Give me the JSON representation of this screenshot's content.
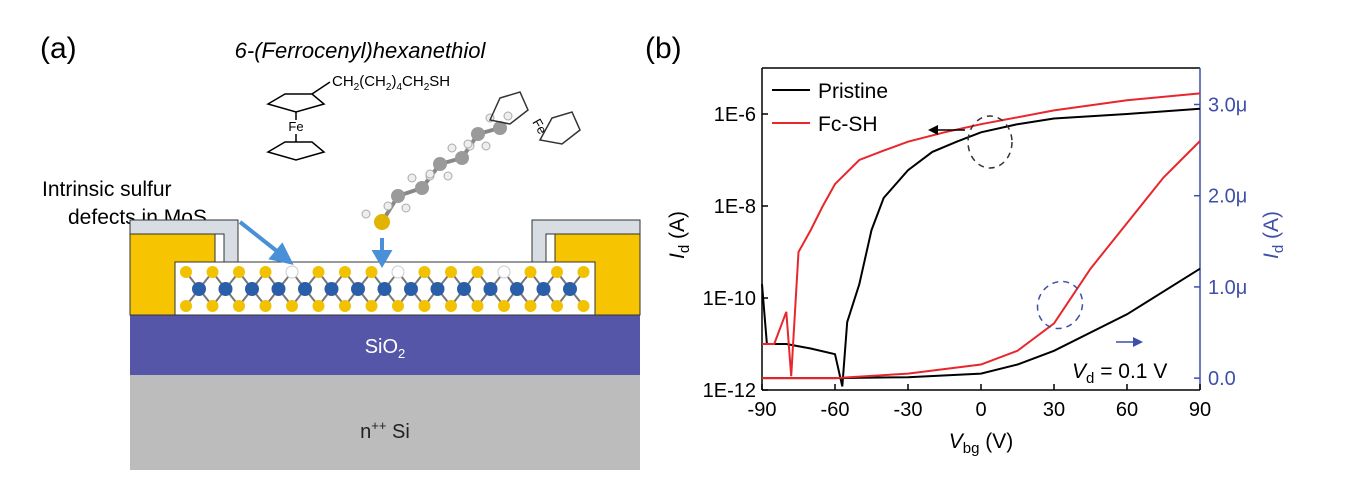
{
  "panel_a": {
    "label": "(a)",
    "molecule_name": "6-(Ferrocenyl)hexanethiol",
    "formula": [
      "CH",
      "2",
      "(CH",
      "2",
      ")",
      "4",
      "CH",
      "2",
      "SH"
    ],
    "fe_label": "Fe",
    "fe_label_molecule": "Fe",
    "defect_label": [
      "Intrinsic sulfur",
      "defects in MoS",
      "2"
    ],
    "oxide_label": [
      "SiO",
      "2"
    ],
    "substrate_label": [
      "n",
      "++",
      " Si"
    ]
  },
  "chart_data": {
    "type": "line",
    "label": "(b)",
    "xlabel": [
      "V",
      "bg",
      " (V)"
    ],
    "ylabel": [
      "I",
      "d",
      " (A)"
    ],
    "y2label": [
      "I",
      "d",
      " (A)"
    ],
    "annotation": [
      "V",
      "d",
      " = 0.1 V"
    ],
    "xlim": [
      -90,
      90
    ],
    "xticks": [
      -90,
      -60,
      -30,
      0,
      30,
      60,
      90
    ],
    "yscale": "log",
    "ylim": [
      1e-12,
      1e-05
    ],
    "yticks": [
      {
        "value": 1e-12,
        "label": "1E-12"
      },
      {
        "value": 1e-10,
        "label": "1E-10"
      },
      {
        "value": 1e-08,
        "label": "1E-8"
      },
      {
        "value": 1e-06,
        "label": "1E-6"
      }
    ],
    "y2lim": [
      -1.3e-07,
      3.4e-06
    ],
    "y2ticks": [
      {
        "value": 0,
        "label": "0.0"
      },
      {
        "value": 1e-06,
        "label": "1.0μ"
      },
      {
        "value": 2e-06,
        "label": "2.0μ"
      },
      {
        "value": 3e-06,
        "label": "3.0μ"
      }
    ],
    "y2color": "#3f4fa8",
    "legend": "upper left",
    "series": [
      {
        "name": "Pristine",
        "color": "#000000",
        "x": [
          -90,
          -88,
          -80,
          -70,
          -60,
          -57,
          -55,
          -50,
          -45,
          -40,
          -30,
          -20,
          -10,
          0,
          15,
          30,
          60,
          90
        ],
        "values": [
          2e-10,
          1e-11,
          1e-11,
          8e-12,
          6e-12,
          1.2e-12,
          3e-11,
          2e-10,
          3e-09,
          1.5e-08,
          6e-08,
          1.5e-07,
          2.5e-07,
          4e-07,
          6e-07,
          8e-07,
          1e-06,
          1.3e-06
        ],
        "y2_x": [
          -90,
          -60,
          -30,
          0,
          15,
          30,
          60,
          90
        ],
        "y2_values": [
          0,
          0,
          1e-08,
          5e-08,
          1.5e-07,
          3e-07,
          7e-07,
          1.2e-06
        ]
      },
      {
        "name": "Fc-SH",
        "color": "#e8262b",
        "x": [
          -90,
          -85,
          -80,
          -78,
          -75,
          -70,
          -65,
          -60,
          -50,
          -40,
          -30,
          -15,
          0,
          30,
          60,
          90
        ],
        "values": [
          1e-11,
          1e-11,
          5e-11,
          2e-12,
          1e-09,
          3e-09,
          1e-08,
          3e-08,
          1e-07,
          1.6e-07,
          2.5e-07,
          4e-07,
          6e-07,
          1.2e-06,
          2e-06,
          2.8e-06
        ],
        "y2_x": [
          -90,
          -60,
          -30,
          0,
          15,
          30,
          45,
          60,
          75,
          90
        ],
        "y2_values": [
          0,
          0,
          5e-08,
          1.5e-07,
          3e-07,
          6e-07,
          1.2e-06,
          1.7e-06,
          2.2e-06,
          2.6e-06
        ]
      }
    ]
  }
}
